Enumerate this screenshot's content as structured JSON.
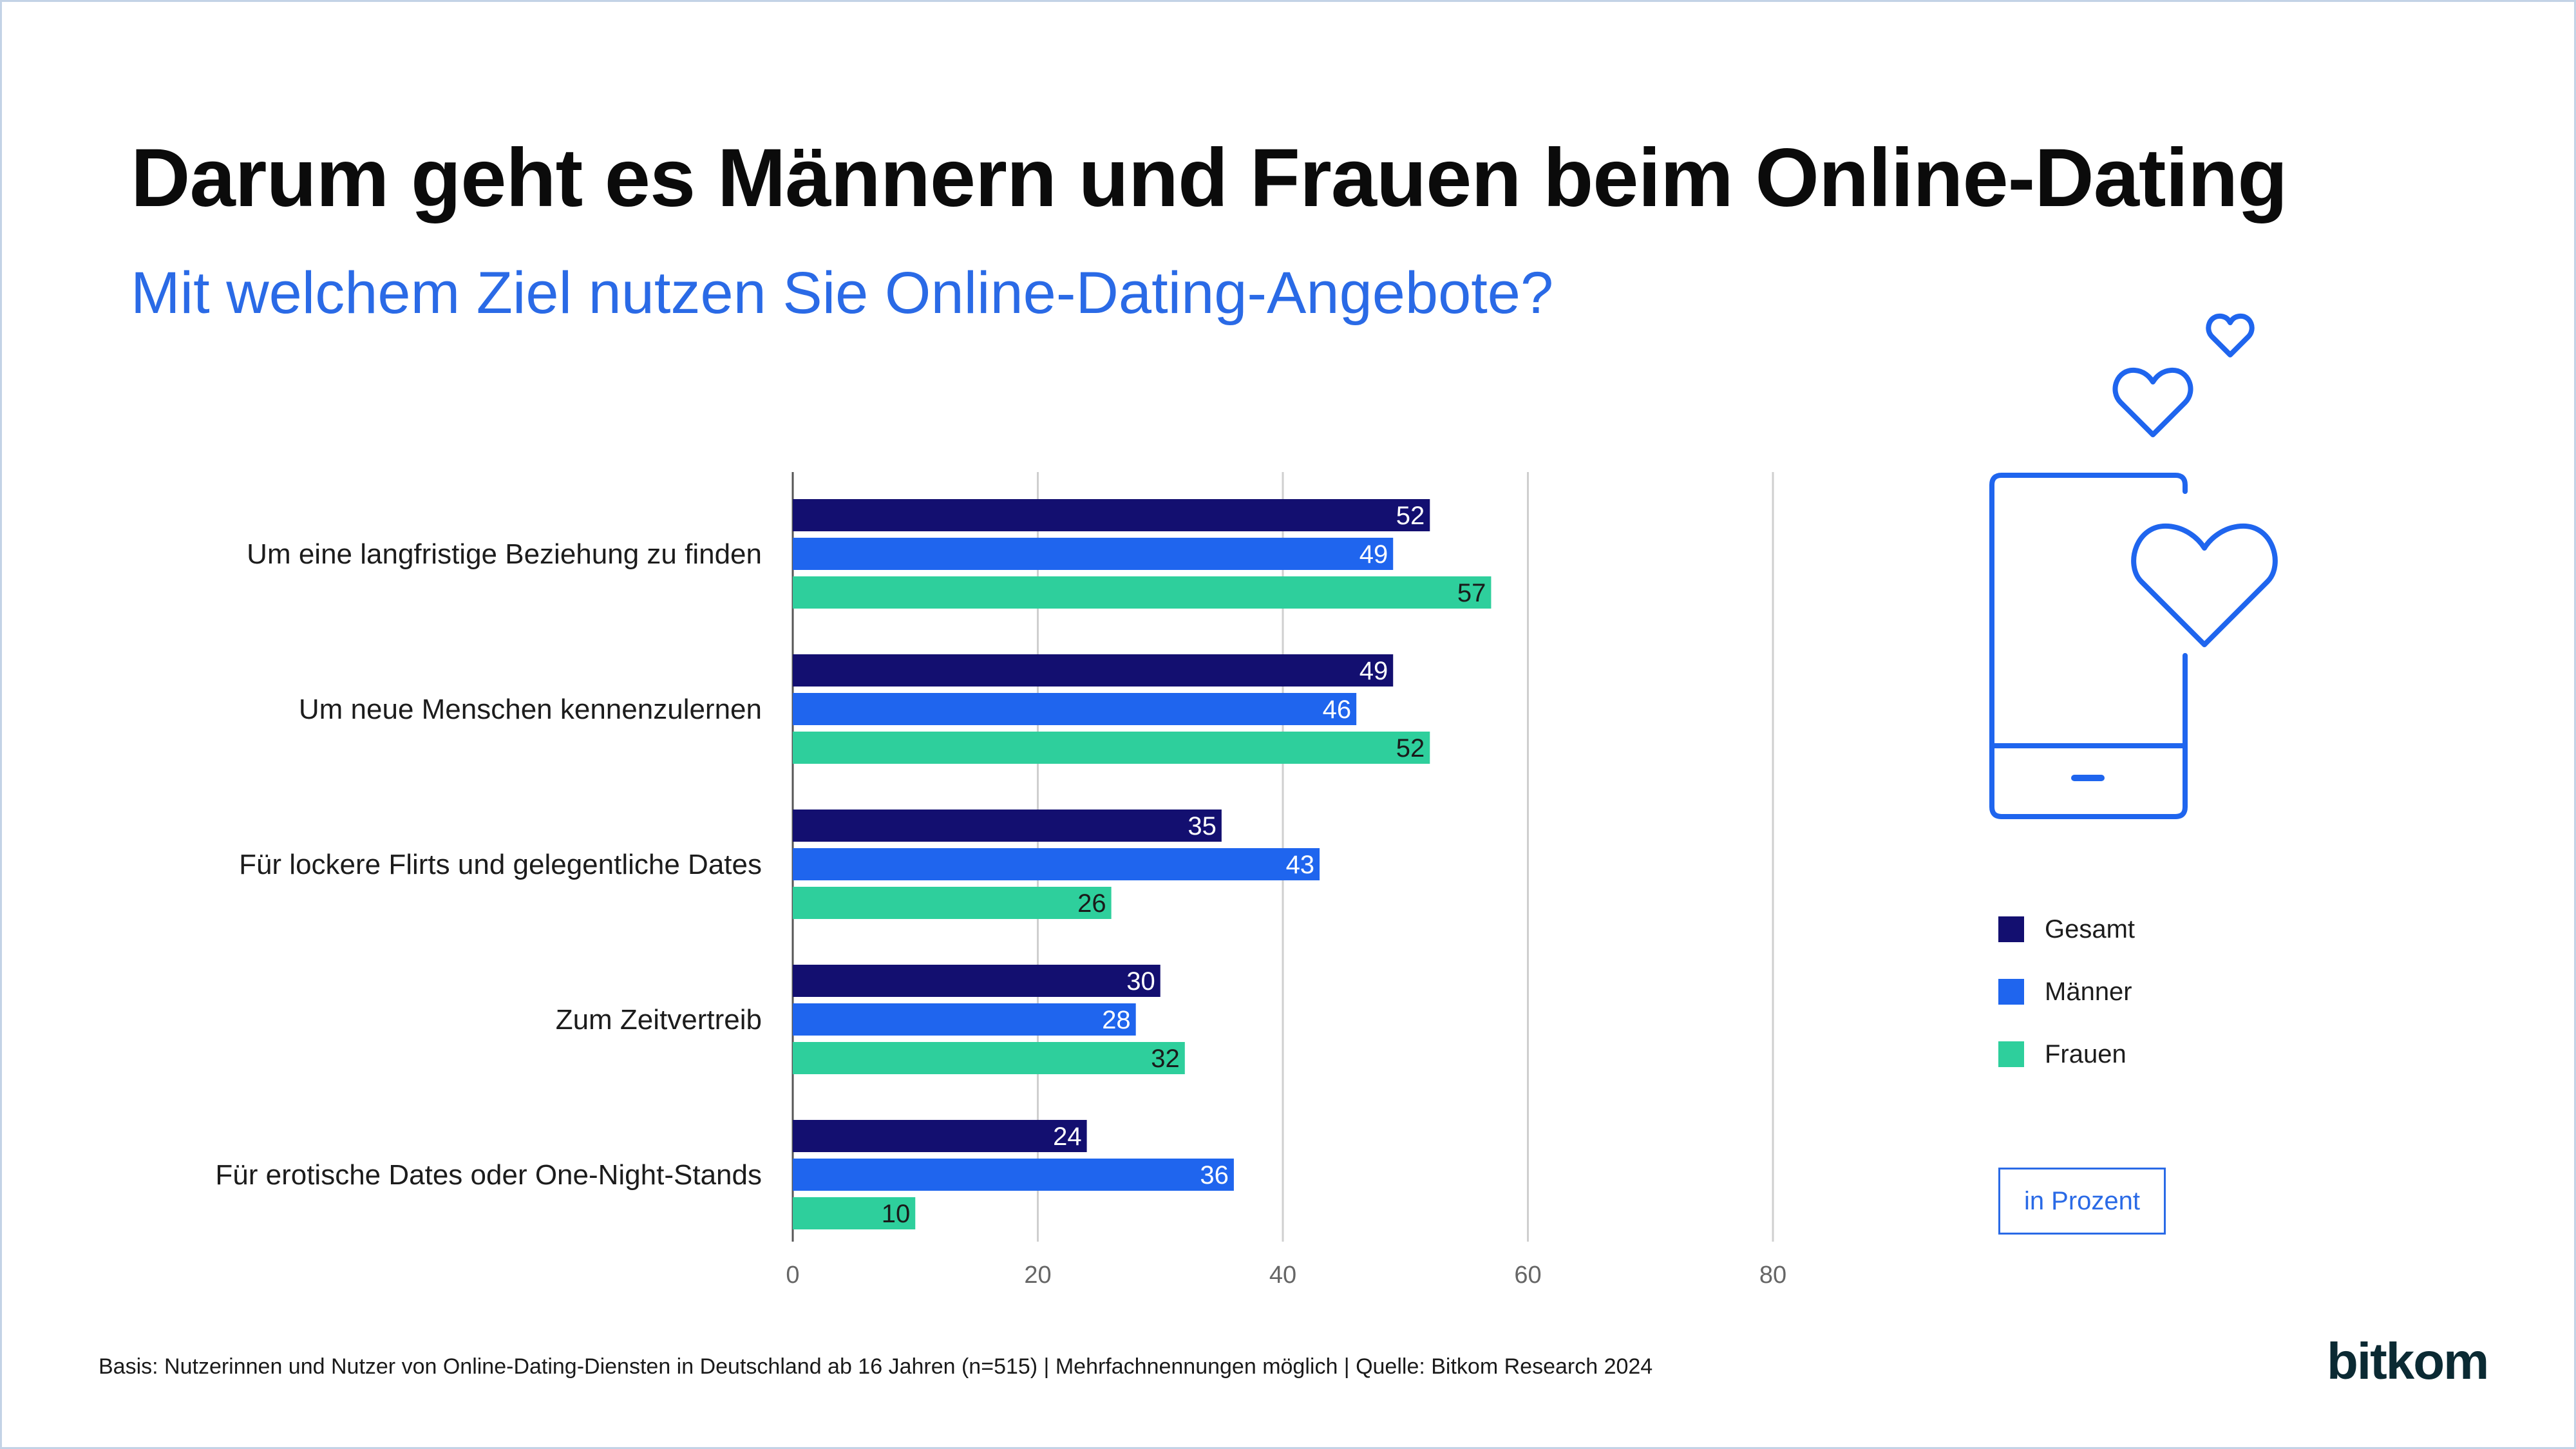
{
  "title": "Darum geht es Männern und Frauen beim Online-Dating",
  "subtitle": "Mit welchem Ziel nutzen Sie Online-Dating-Angebote?",
  "legend": {
    "items": [
      {
        "label": "Gesamt",
        "color": "#130f70"
      },
      {
        "label": "Männer",
        "color": "#1f65ee"
      },
      {
        "label": "Frauen",
        "color": "#2ecf9c"
      }
    ]
  },
  "unit_label": "in Prozent",
  "footnote": "Basis: Nutzerinnen und Nutzer von Online-Dating-Diensten in Deutschland ab 16 Jahren  (n=515) | Mehrfachnennungen möglich | Quelle: Bitkom Research 2024",
  "logo": "bitkom",
  "icons": [
    "phone-icon",
    "heart-icon"
  ],
  "chart_data": {
    "type": "bar",
    "orientation": "horizontal",
    "categories": [
      "Um eine langfristige Beziehung zu finden",
      "Um neue Menschen kennenzulernen",
      "Für lockere Flirts und gelegentliche Dates",
      "Zum Zeitvertreib",
      "Für erotische Dates oder One-Night-Stands"
    ],
    "series": [
      {
        "name": "Gesamt",
        "color": "#130f70",
        "values": [
          52,
          49,
          35,
          30,
          24
        ]
      },
      {
        "name": "Männer",
        "color": "#1f65ee",
        "values": [
          49,
          46,
          43,
          28,
          36
        ]
      },
      {
        "name": "Frauen",
        "color": "#2ecf9c",
        "values": [
          57,
          52,
          26,
          32,
          10
        ]
      }
    ],
    "xlim": [
      0,
      80
    ],
    "xticks": [
      0,
      20,
      40,
      60,
      80
    ],
    "grid": true,
    "legend_position": "right"
  }
}
